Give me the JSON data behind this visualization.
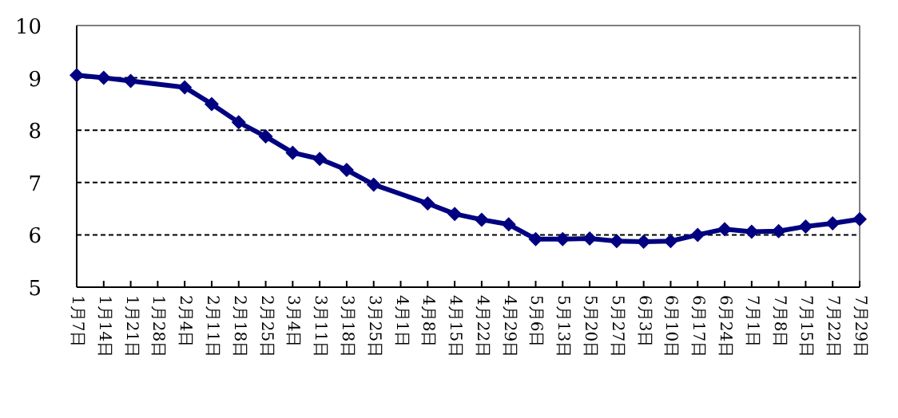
{
  "chart_data": {
    "type": "line",
    "categories": [
      "1月7日",
      "1月14日",
      "1月21日",
      "1月28日",
      "2月4日",
      "2月11日",
      "2月18日",
      "2月25日",
      "3月4日",
      "3月11日",
      "3月18日",
      "3月25日",
      "4月1日",
      "4月8日",
      "4月15日",
      "4月22日",
      "4月29日",
      "5月6日",
      "5月13日",
      "5月20日",
      "5月27日",
      "6月3日",
      "6月10日",
      "6月17日",
      "6月24日",
      "7月1日",
      "7月8日",
      "7月15日",
      "7月22日",
      "7月29日"
    ],
    "series": [
      {
        "color": "#000080",
        "values": [
          9.05,
          9.0,
          8.94,
          null,
          8.82,
          8.5,
          8.15,
          7.88,
          7.57,
          7.45,
          7.24,
          6.96,
          null,
          6.6,
          6.4,
          6.29,
          6.2,
          5.92,
          5.92,
          5.93,
          5.88,
          5.87,
          5.88,
          6.0,
          6.11,
          6.06,
          6.07,
          6.16,
          6.22,
          6.3
        ]
      }
    ],
    "ylim": [
      5,
      10
    ],
    "yticks": [
      5,
      6,
      7,
      8,
      9,
      10
    ],
    "grid": "y",
    "marker": "diamond",
    "line_style": "solid"
  }
}
